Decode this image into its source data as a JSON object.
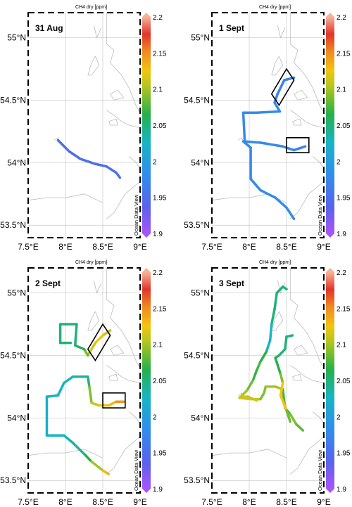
{
  "chart_data": [
    {
      "type": "map-track",
      "title": "31 Aug",
      "colorbar": {
        "title": "CH4 dry [ppm]",
        "range": [
          1.9,
          2.2
        ],
        "ticks": [
          "2.2",
          "2.15",
          "2.1",
          "2.05",
          "2",
          "1.95",
          "1.9"
        ]
      },
      "watermark": "Ocean Data View",
      "x_ticks": [
        "7.5°E",
        "8°E",
        "8.5°E",
        "9°E"
      ],
      "y_ticks": [
        "55°N",
        "54.5°N",
        "54°N",
        "53.5°N"
      ],
      "xlim": [
        7.5,
        9.0
      ],
      "ylim": [
        53.4,
        55.2
      ],
      "tracks": [
        {
          "points": [
            [
              7.9,
              54.18,
              1.95
            ],
            [
              8.05,
              54.09,
              1.95
            ],
            [
              8.2,
              54.03,
              1.95
            ],
            [
              8.4,
              53.99,
              1.95
            ],
            [
              8.55,
              53.97,
              1.95
            ],
            [
              8.68,
              53.92,
              1.95
            ],
            [
              8.73,
              53.88,
              1.96
            ]
          ]
        }
      ],
      "boxes": []
    },
    {
      "type": "map-track",
      "title": "1 Sept",
      "colorbar": {
        "title": "CH4 dry [ppm]",
        "range": [
          1.9,
          2.2
        ],
        "ticks": [
          "2.2",
          "2.15",
          "2.1",
          "2.05",
          "2",
          "1.95",
          "1.9"
        ]
      },
      "watermark": "Ocean Data View",
      "x_ticks": [
        "7.5°E",
        "8°E",
        "8.5°E",
        "9°E"
      ],
      "y_ticks": [
        "55°N",
        "54.5°N",
        "54°N",
        "53.5°N"
      ],
      "xlim": [
        7.5,
        9.0
      ],
      "ylim": [
        53.4,
        55.2
      ],
      "tracks": [
        {
          "points": [
            [
              8.6,
              54.68,
              1.97
            ],
            [
              8.47,
              54.66,
              1.97
            ],
            [
              8.38,
              54.55,
              1.97
            ],
            [
              8.34,
              54.48,
              1.98
            ],
            [
              8.41,
              54.41,
              1.98
            ],
            [
              8.1,
              54.4,
              1.98
            ],
            [
              7.92,
              54.4,
              1.98
            ],
            [
              7.94,
              54.17,
              1.98
            ],
            [
              8.15,
              54.16,
              1.98
            ],
            [
              8.45,
              54.13,
              1.98
            ],
            [
              8.6,
              54.1,
              1.97
            ],
            [
              8.75,
              54.13,
              1.97
            ]
          ]
        },
        {
          "points": [
            [
              7.92,
              54.17,
              1.98
            ],
            [
              8.02,
              54.12,
              1.98
            ],
            [
              8.02,
              53.87,
              1.98
            ],
            [
              8.15,
              53.78,
              1.98
            ],
            [
              8.35,
              53.72,
              1.98
            ],
            [
              8.5,
              53.64,
              1.98
            ],
            [
              8.6,
              53.55,
              1.98
            ]
          ]
        }
      ],
      "boxes": [
        {
          "corners": [
            [
              8.3,
              54.55
            ],
            [
              8.5,
              54.75
            ],
            [
              8.6,
              54.66
            ],
            [
              8.4,
              54.46
            ]
          ]
        },
        {
          "corners": [
            [
              8.5,
              54.08
            ],
            [
              8.8,
              54.08
            ],
            [
              8.8,
              54.2
            ],
            [
              8.5,
              54.2
            ]
          ]
        }
      ]
    },
    {
      "type": "map-track",
      "title": "2 Sept",
      "colorbar": {
        "title": "CH4 dry [ppm]",
        "range": [
          1.9,
          2.2
        ],
        "ticks": [
          "2.2",
          "2.15",
          "2.1",
          "2.05",
          "2",
          "1.95",
          "1.9"
        ]
      },
      "watermark": "Ocean Data View",
      "x_ticks": [
        "7.5°E",
        "8°E",
        "8.5°E",
        "9°E"
      ],
      "y_ticks": [
        "55°N",
        "54.5°N",
        "54°N",
        "53.5°N"
      ],
      "xlim": [
        7.5,
        9.0
      ],
      "ylim": [
        53.4,
        55.2
      ],
      "tracks": [
        {
          "points": [
            [
              8.6,
              54.7,
              2.1
            ],
            [
              8.5,
              54.66,
              2.12
            ],
            [
              8.4,
              54.6,
              2.13
            ],
            [
              8.3,
              54.5,
              2.1
            ],
            [
              8.25,
              54.55,
              2.07
            ],
            [
              8.13,
              54.58,
              2.05
            ],
            [
              8.15,
              54.75,
              2.05
            ],
            [
              7.93,
              54.75,
              2.05
            ],
            [
              7.93,
              54.6,
              2.05
            ],
            [
              8.07,
              54.6,
              2.05
            ]
          ]
        },
        {
          "points": [
            [
              8.32,
              54.25,
              2.05
            ],
            [
              8.3,
              54.33,
              2.05
            ],
            [
              8.1,
              54.33,
              2.03
            ],
            [
              7.98,
              54.28,
              2.03
            ],
            [
              7.9,
              54.18,
              2.02
            ],
            [
              7.75,
              54.17,
              2.02
            ],
            [
              7.75,
              53.86,
              2.02
            ],
            [
              7.98,
              53.86,
              2.03
            ],
            [
              8.1,
              53.8,
              2.03
            ],
            [
              8.27,
              53.7,
              2.05
            ],
            [
              8.35,
              53.65,
              2.08
            ],
            [
              8.5,
              53.58,
              2.12
            ],
            [
              8.58,
              53.55,
              2.14
            ]
          ]
        },
        {
          "points": [
            [
              8.32,
              54.25,
              2.08
            ],
            [
              8.35,
              54.12,
              2.1
            ],
            [
              8.45,
              54.1,
              2.12
            ],
            [
              8.58,
              54.1,
              2.12
            ],
            [
              8.68,
              54.13,
              2.14
            ],
            [
              8.78,
              54.13,
              2.15
            ]
          ]
        }
      ],
      "boxes": [
        {
          "corners": [
            [
              8.3,
              54.55
            ],
            [
              8.5,
              54.75
            ],
            [
              8.6,
              54.66
            ],
            [
              8.4,
              54.46
            ]
          ]
        },
        {
          "corners": [
            [
              8.5,
              54.08
            ],
            [
              8.8,
              54.08
            ],
            [
              8.8,
              54.2
            ],
            [
              8.5,
              54.2
            ]
          ]
        }
      ]
    },
    {
      "type": "map-track",
      "title": "3 Sept",
      "colorbar": {
        "title": "CH4 dry [ppm]",
        "range": [
          1.9,
          2.2
        ],
        "ticks": [
          "2.2",
          "2.15",
          "2.1",
          "2.05",
          "2",
          "1.95",
          "1.9"
        ]
      },
      "watermark": "Ocean Data View",
      "x_ticks": [
        "7.5°E",
        "8°E",
        "8.5°E",
        "9°E"
      ],
      "y_ticks": [
        "55°N",
        "54.5°N",
        "54°N",
        "53.5°N"
      ],
      "xlim": [
        7.5,
        9.0
      ],
      "ylim": [
        53.4,
        55.2
      ],
      "tracks": [
        {
          "points": [
            [
              8.5,
              55.03,
              2.05
            ],
            [
              8.45,
              55.05,
              2.05
            ],
            [
              8.37,
              55.0,
              2.05
            ],
            [
              8.34,
              54.87,
              2.05
            ],
            [
              8.3,
              54.75,
              2.05
            ],
            [
              8.28,
              54.62,
              2.0
            ],
            [
              8.23,
              54.53,
              2.05
            ],
            [
              8.15,
              54.45,
              2.08
            ],
            [
              8.1,
              54.38,
              2.07
            ],
            [
              8.05,
              54.3,
              2.07
            ],
            [
              7.97,
              54.22,
              2.1
            ],
            [
              7.87,
              54.16,
              2.1
            ],
            [
              8.02,
              54.15,
              2.13
            ],
            [
              8.15,
              54.15,
              2.1
            ],
            [
              8.2,
              54.2,
              2.08
            ],
            [
              8.22,
              54.25,
              2.1
            ],
            [
              8.35,
              54.25,
              2.1
            ],
            [
              8.45,
              54.23,
              2.1
            ],
            [
              8.48,
              54.08,
              2.05
            ],
            [
              8.55,
              54.03,
              2.1
            ],
            [
              8.63,
              53.95,
              2.08
            ],
            [
              8.72,
              53.9,
              2.08
            ]
          ]
        },
        {
          "points": [
            [
              8.58,
              54.66,
              2.05
            ],
            [
              8.5,
              54.65,
              2.05
            ],
            [
              8.48,
              54.55,
              2.05
            ],
            [
              8.4,
              54.5,
              2.05
            ],
            [
              8.35,
              54.48,
              2.05
            ],
            [
              8.42,
              54.35,
              2.08
            ],
            [
              8.45,
              54.28,
              2.1
            ],
            [
              8.42,
              54.18,
              2.15
            ],
            [
              8.5,
              54.06,
              2.1
            ],
            [
              8.55,
              53.97,
              2.07
            ]
          ]
        },
        {
          "points": [
            [
              7.88,
              54.17,
              2.1
            ],
            [
              7.98,
              54.17,
              2.12
            ],
            [
              8.1,
              54.14,
              2.1
            ]
          ]
        }
      ],
      "boxes": []
    }
  ]
}
